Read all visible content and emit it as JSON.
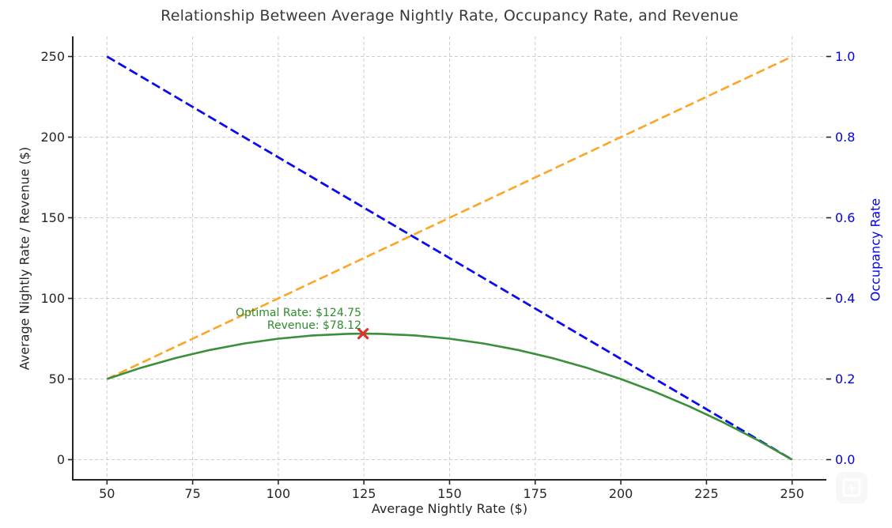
{
  "chart_data": {
    "type": "line",
    "title": "Relationship Between Average Nightly Rate, Occupancy Rate, and Revenue",
    "xlabel": "Average Nightly Rate ($)",
    "ylabel_left": "Average Nightly Rate / Revenue ($)",
    "ylabel_right": "Occupancy Rate",
    "xlim": [
      40,
      260
    ],
    "ylim_left": [
      -12.5,
      262.5
    ],
    "ylim_right": [
      -0.05,
      1.05
    ],
    "grid": true,
    "legend": "none",
    "x_tick_labels": [
      "50",
      "75",
      "100",
      "125",
      "150",
      "175",
      "200",
      "225",
      "250"
    ],
    "y_tick_labels_left": [
      "0",
      "50",
      "100",
      "150",
      "200",
      "250"
    ],
    "y_tick_labels_right": [
      "0.0",
      "0.2",
      "0.4",
      "0.6",
      "0.8",
      "1.0"
    ],
    "colors": {
      "rate_line": "#ffa424",
      "occupancy_line": "#0b0bee",
      "revenue_line": "#3a8f3a",
      "annotation_text": "#2e8b2e",
      "marker": "#e0302a",
      "grid": "#cdcdcd",
      "spine": "#262626",
      "tick_text": "#262626",
      "right_axis_text": "#0000ee",
      "title_text": "#3a3a3a"
    },
    "series": [
      {
        "name": "Average Nightly Rate",
        "axis": "left",
        "style": "dashed",
        "color_key": "rate_line",
        "x": [
          50,
          250
        ],
        "y": [
          50,
          250
        ]
      },
      {
        "name": "Occupancy Rate",
        "axis": "right",
        "style": "dashed",
        "color_key": "occupancy_line",
        "x": [
          50,
          250
        ],
        "y": [
          1.0,
          0.0
        ]
      },
      {
        "name": "Revenue",
        "axis": "left",
        "style": "solid",
        "color_key": "revenue_line",
        "x": [
          50,
          60,
          70,
          80,
          90,
          100,
          110,
          120,
          125,
          130,
          140,
          150,
          160,
          170,
          180,
          190,
          200,
          210,
          220,
          230,
          240,
          250
        ],
        "y": [
          50,
          57,
          63,
          68,
          72,
          75,
          77,
          78,
          78.125,
          78,
          77,
          75,
          72,
          68,
          63,
          57,
          50,
          42,
          33,
          23,
          12,
          0
        ]
      }
    ],
    "annotation": {
      "lines": [
        "Optimal Rate: $124.75",
        "Revenue: $78.12"
      ],
      "x": 124.75,
      "y": 78.12,
      "marker": "x"
    }
  }
}
